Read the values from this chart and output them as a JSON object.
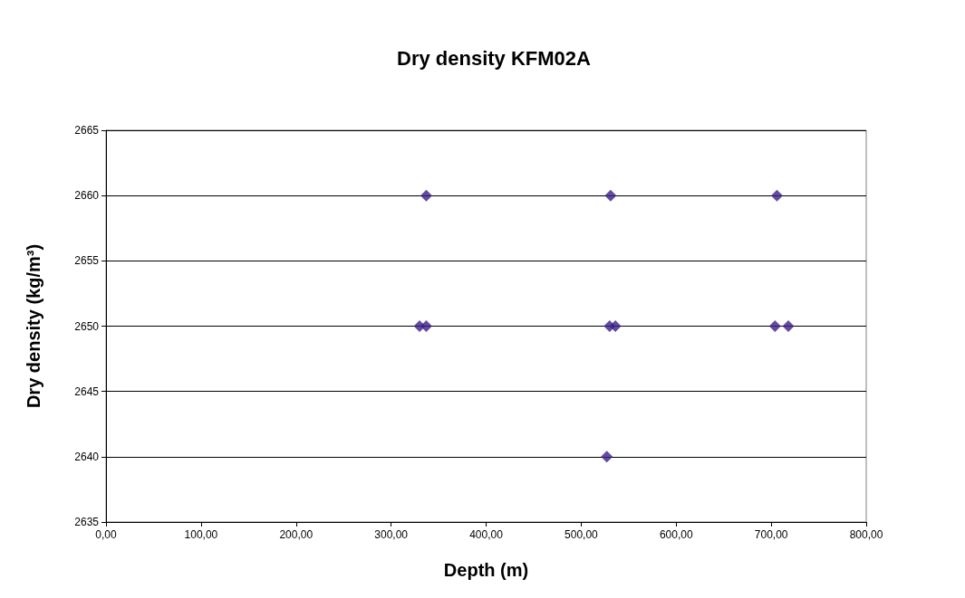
{
  "chart_data": {
    "type": "scatter",
    "title": "Dry density KFM02A",
    "xlabel": "Depth (m)",
    "ylabel": "Dry density (kg/m³)",
    "x": [
      337,
      531,
      706,
      330,
      337,
      530,
      536,
      704,
      718,
      527
    ],
    "values": [
      2660,
      2660,
      2660,
      2650,
      2650,
      2650,
      2650,
      2650,
      2650,
      2640
    ],
    "color": "#3c1f86",
    "marker": "diamond",
    "xlim": [
      0,
      800
    ],
    "xticks": [
      {
        "value": 0,
        "label": "0,00"
      },
      {
        "value": 100,
        "label": "100,00"
      },
      {
        "value": 200,
        "label": "200,00"
      },
      {
        "value": 300,
        "label": "300,00"
      },
      {
        "value": 400,
        "label": "400,00"
      },
      {
        "value": 500,
        "label": "500,00"
      },
      {
        "value": 600,
        "label": "600,00"
      },
      {
        "value": 700,
        "label": "700,00"
      },
      {
        "value": 800,
        "label": "800,00"
      }
    ],
    "ylim": [
      2635,
      2665
    ],
    "yticks": [
      2635,
      2640,
      2645,
      2650,
      2655,
      2660,
      2665
    ],
    "grid": "y"
  }
}
